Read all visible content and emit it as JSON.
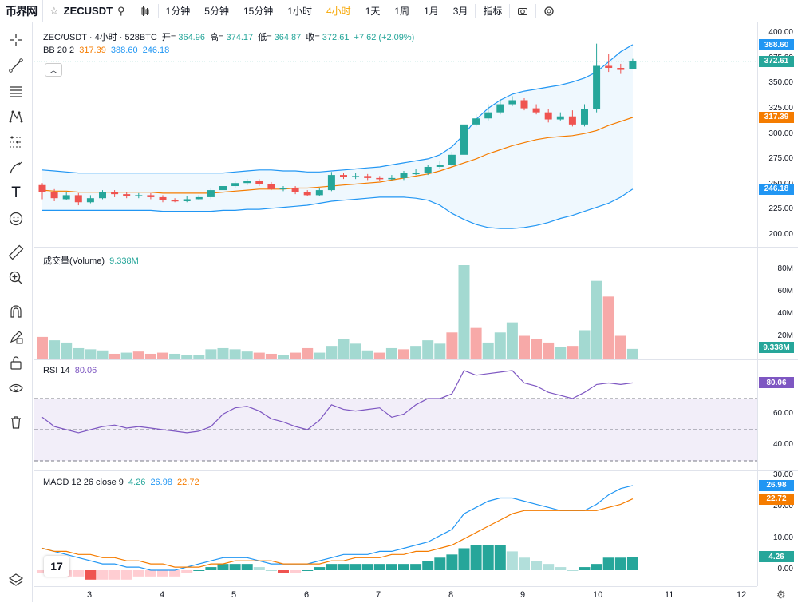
{
  "header": {
    "logo": "币界网",
    "symbol": "ZECUSDT",
    "intervals": [
      "1分钟",
      "5分钟",
      "15分钟",
      "1小时",
      "4小时",
      "1天",
      "1周",
      "1月",
      "3月"
    ],
    "active_interval": "4小时",
    "indicators_label": "指标"
  },
  "legend": {
    "title": "ZEC/USDT · 4小时 · 528BTC",
    "open_label": "开=",
    "open": "364.96",
    "high_label": "高=",
    "high": "374.17",
    "low_label": "低=",
    "low": "364.87",
    "close_label": "收=",
    "close": "372.61",
    "change": "+7.62 (+2.09%)",
    "bb_label": "BB 20 2",
    "bb_mid": "317.39",
    "bb_upper": "388.60",
    "bb_lower": "246.18",
    "volume_label": "成交量(Volume)",
    "volume": "9.338M",
    "rsi_label": "RSI 14",
    "rsi": "80.06",
    "macd_label": "MACD 12 26 close 9",
    "macd_hist": "4.26",
    "macd_line": "26.98",
    "macd_signal": "22.72"
  },
  "axes": {
    "price_ticks": [
      "400.00",
      "375.00",
      "350.00",
      "325.00",
      "300.00",
      "275.00",
      "250.00",
      "225.00",
      "200.00"
    ],
    "volume_ticks": [
      "80M",
      "60M",
      "40M",
      "20M"
    ],
    "rsi_ticks": [
      "60.00",
      "40.00"
    ],
    "macd_ticks": [
      "30.00",
      "20.00",
      "10.00",
      "0.00"
    ],
    "x_ticks": [
      "3",
      "4",
      "5",
      "6",
      "7",
      "8",
      "9",
      "10",
      "11",
      "12"
    ]
  },
  "price_tags": {
    "upper": "388.60",
    "last": "372.61",
    "mid": "317.39",
    "lower": "246.18",
    "volume": "9.338M",
    "rsi": "80.06",
    "macd_line": "26.98",
    "macd_signal": "22.72",
    "macd_hist": "4.26"
  },
  "colors": {
    "up": "#26a69a",
    "down": "#ef5350",
    "upper": "#2196f3",
    "mid": "#f57c00",
    "lower": "#2196f3",
    "rsi": "#7e57c2",
    "vol_up": "#a3d9d1",
    "vol_down": "#f7a9a8"
  },
  "chart_data": {
    "type": "candlestick",
    "x_ticks": [
      "3",
      "4",
      "5",
      "6",
      "7",
      "8",
      "9",
      "10",
      "11",
      "12"
    ],
    "candles": [
      [
        250,
        243,
        252,
        236
      ],
      [
        243,
        237,
        246,
        234
      ],
      [
        236,
        240,
        243,
        235
      ],
      [
        240,
        233,
        242,
        230
      ],
      [
        233,
        237,
        240,
        232
      ],
      [
        237,
        243,
        245,
        236
      ],
      [
        243,
        241,
        245,
        238
      ],
      [
        241,
        239,
        243,
        237
      ],
      [
        239,
        240,
        242,
        237
      ],
      [
        240,
        238,
        242,
        236
      ],
      [
        238,
        235,
        240,
        233
      ],
      [
        235,
        234,
        237,
        233
      ],
      [
        234,
        236,
        239,
        233
      ],
      [
        236,
        238,
        240,
        235
      ],
      [
        238,
        245,
        247,
        236
      ],
      [
        245,
        249,
        251,
        243
      ],
      [
        249,
        252,
        254,
        247
      ],
      [
        252,
        254,
        256,
        250
      ],
      [
        254,
        251,
        256,
        249
      ],
      [
        251,
        246,
        253,
        245
      ],
      [
        246,
        247,
        249,
        244
      ],
      [
        247,
        243,
        249,
        241
      ],
      [
        243,
        240,
        245,
        239
      ],
      [
        240,
        245,
        247,
        239
      ],
      [
        245,
        260,
        263,
        244
      ],
      [
        260,
        258,
        262,
        256
      ],
      [
        258,
        259,
        262,
        256
      ],
      [
        259,
        257,
        261,
        255
      ],
      [
        257,
        256,
        259,
        254
      ],
      [
        256,
        257,
        260,
        255
      ],
      [
        257,
        262,
        264,
        255
      ],
      [
        262,
        262,
        266,
        260
      ],
      [
        262,
        268,
        270,
        260
      ],
      [
        268,
        270,
        274,
        266
      ],
      [
        270,
        280,
        283,
        268
      ],
      [
        280,
        310,
        315,
        278
      ],
      [
        310,
        316,
        320,
        308
      ],
      [
        316,
        322,
        330,
        314
      ],
      [
        322,
        330,
        335,
        320
      ],
      [
        330,
        334,
        338,
        328
      ],
      [
        334,
        326,
        336,
        324
      ],
      [
        326,
        322,
        330,
        320
      ],
      [
        322,
        315,
        325,
        312
      ],
      [
        315,
        318,
        322,
        314
      ],
      [
        318,
        310,
        324,
        308
      ],
      [
        310,
        325,
        330,
        308
      ],
      [
        325,
        368,
        390,
        322
      ],
      [
        368,
        366,
        380,
        362
      ],
      [
        366,
        364,
        370,
        360
      ],
      [
        365,
        373,
        375,
        365
      ]
    ],
    "bb_upper": [
      265,
      264,
      263,
      262,
      262,
      262,
      262,
      262,
      262,
      262,
      262,
      262,
      262,
      262,
      262,
      262,
      263,
      264,
      265,
      265,
      264,
      264,
      263,
      263,
      264,
      265,
      266,
      267,
      268,
      270,
      272,
      274,
      276,
      280,
      288,
      300,
      315,
      326,
      334,
      340,
      343,
      345,
      347,
      349,
      352,
      356,
      362,
      372,
      382,
      389
    ],
    "bb_mid": [
      245,
      244,
      244,
      243,
      243,
      243,
      243,
      243,
      243,
      243,
      242,
      242,
      242,
      242,
      242,
      243,
      244,
      245,
      246,
      246,
      246,
      247,
      247,
      248,
      249,
      250,
      251,
      252,
      253,
      255,
      257,
      259,
      261,
      264,
      268,
      272,
      276,
      281,
      285,
      289,
      292,
      295,
      297,
      298,
      299,
      301,
      304,
      309,
      313,
      317
    ],
    "bb_lower": [
      225,
      225,
      225,
      225,
      225,
      225,
      225,
      225,
      225,
      225,
      224,
      224,
      224,
      224,
      224,
      225,
      225,
      226,
      226,
      227,
      228,
      229,
      230,
      232,
      234,
      235,
      236,
      237,
      238,
      238,
      238,
      237,
      235,
      230,
      222,
      216,
      211,
      208,
      207,
      207,
      208,
      210,
      213,
      217,
      220,
      224,
      228,
      232,
      238,
      246
    ],
    "volume_M": [
      20,
      17,
      15,
      10,
      9,
      8,
      5,
      6,
      7,
      5,
      6,
      5,
      4,
      4,
      9,
      10,
      9,
      7,
      6,
      5,
      4,
      6,
      10,
      6,
      12,
      18,
      14,
      8,
      6,
      10,
      9,
      12,
      17,
      14,
      24,
      84,
      28,
      15,
      24,
      33,
      21,
      18,
      15,
      11,
      12,
      26,
      70,
      56,
      21,
      9.338
    ],
    "volume_up": [
      false,
      true,
      true,
      true,
      true,
      true,
      false,
      true,
      false,
      false,
      false,
      true,
      true,
      true,
      true,
      true,
      true,
      true,
      false,
      false,
      true,
      false,
      false,
      true,
      true,
      true,
      true,
      true,
      false,
      true,
      false,
      true,
      true,
      true,
      false,
      true,
      false,
      true,
      true,
      true,
      false,
      false,
      false,
      true,
      false,
      true,
      true,
      false,
      false,
      true
    ],
    "rsi": [
      58,
      52,
      50,
      48,
      50,
      52,
      53,
      51,
      52,
      51,
      50,
      49,
      48,
      49,
      52,
      60,
      64,
      65,
      62,
      57,
      55,
      52,
      50,
      56,
      66,
      63,
      62,
      63,
      64,
      58,
      60,
      66,
      70,
      70,
      73,
      88,
      85,
      86,
      87,
      88,
      80,
      78,
      74,
      72,
      70,
      74,
      79,
      80,
      79,
      80.06
    ],
    "rsi_bands": [
      70,
      50,
      30
    ],
    "macd_line": [
      7,
      6,
      5,
      4,
      3,
      2,
      2,
      1,
      1,
      0,
      0,
      0,
      1,
      2,
      3,
      4,
      4,
      4,
      3,
      2,
      2,
      2,
      2,
      3,
      4,
      5,
      5,
      5,
      6,
      6,
      7,
      8,
      9,
      11,
      13,
      18,
      20,
      22,
      23,
      23,
      22,
      21,
      20,
      19,
      19,
      19,
      21,
      24,
      26,
      26.98
    ],
    "macd_signal": [
      7,
      6,
      6,
      5,
      5,
      4,
      4,
      3,
      3,
      2,
      2,
      1,
      1,
      1,
      2,
      2,
      3,
      3,
      3,
      3,
      2,
      2,
      2,
      2,
      3,
      3,
      4,
      4,
      4,
      5,
      5,
      6,
      6,
      7,
      8,
      10,
      12,
      14,
      16,
      18,
      19,
      19,
      19,
      19,
      19,
      19,
      19,
      20,
      21,
      22.72
    ],
    "macd_hist": [
      -1,
      -2,
      -2,
      -2,
      -3,
      -3,
      -3,
      -3,
      -2,
      -2,
      -2,
      -2,
      -1,
      0,
      1,
      2,
      2,
      2,
      1,
      0,
      -1,
      -1,
      0,
      1,
      2,
      2,
      2,
      2,
      2,
      2,
      2,
      2,
      3,
      4,
      5,
      7,
      8,
      8,
      8,
      6,
      4,
      3,
      2,
      1,
      0,
      1,
      2,
      4,
      4,
      4.26
    ]
  }
}
